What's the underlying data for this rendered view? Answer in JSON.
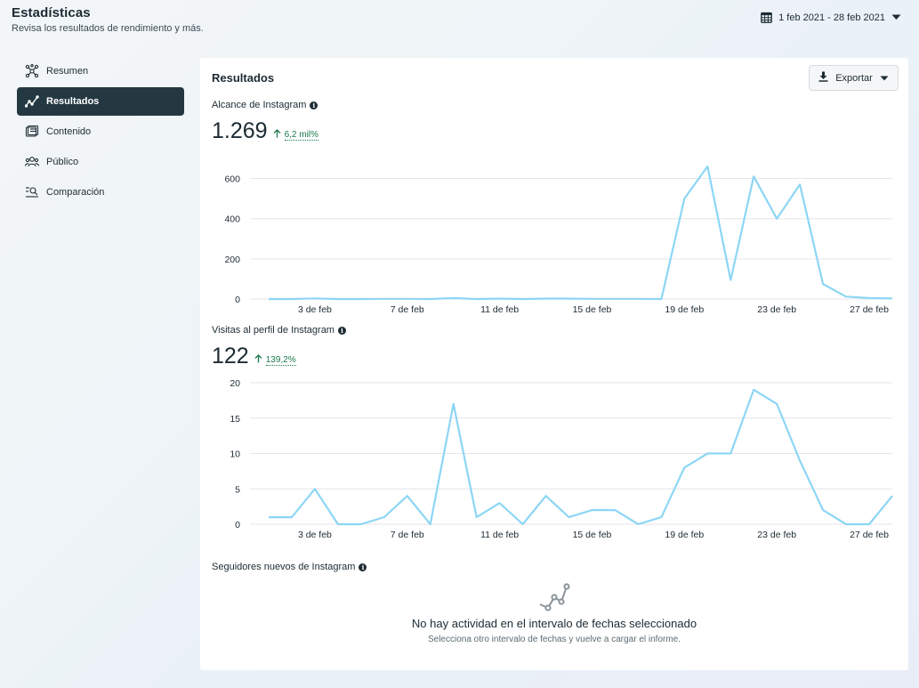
{
  "header": {
    "title": "Estadísticas",
    "subtitle": "Revisa los resultados de rendimiento y más.",
    "date_range": "1 feb 2021 - 28 feb 2021"
  },
  "sidebar": {
    "items": [
      {
        "label": "Resumen",
        "icon": "network-icon",
        "active": false
      },
      {
        "label": "Resultados",
        "icon": "trend-line-icon",
        "active": true
      },
      {
        "label": "Contenido",
        "icon": "content-icon",
        "active": false
      },
      {
        "label": "Público",
        "icon": "people-icon",
        "active": false
      },
      {
        "label": "Comparación",
        "icon": "compare-search-icon",
        "active": false
      }
    ]
  },
  "panel": {
    "title": "Resultados",
    "export_label": "Exportar"
  },
  "metrics": {
    "reach": {
      "label": "Alcance de Instagram",
      "value": "1.269",
      "change": "6,2 mil%",
      "change_direction": "up"
    },
    "profile_visits": {
      "label": "Visitas al perfil de Instagram",
      "value": "122",
      "change": "139,2%",
      "change_direction": "up"
    },
    "new_followers": {
      "label": "Seguidores nuevos de Instagram",
      "empty_title": "No hay actividad en el intervalo de fechas seleccionado",
      "empty_subtitle": "Selecciona otro intervalo de fechas y vuelve a cargar el informe."
    }
  },
  "chart_data": [
    {
      "type": "line",
      "title": "Alcance de Instagram",
      "x": [
        "1 feb",
        "2 feb",
        "3 feb",
        "4 feb",
        "5 feb",
        "6 feb",
        "7 feb",
        "8 feb",
        "9 feb",
        "10 feb",
        "11 feb",
        "12 feb",
        "13 feb",
        "14 feb",
        "15 feb",
        "16 feb",
        "17 feb",
        "18 feb",
        "19 feb",
        "20 feb",
        "21 feb",
        "22 feb",
        "23 feb",
        "24 feb",
        "25 feb",
        "26 feb",
        "27 feb",
        "28 feb"
      ],
      "x_tick_labels": [
        "3 de feb",
        "7 de feb",
        "11 de feb",
        "15 de feb",
        "19 de feb",
        "23 de feb",
        "27 de feb"
      ],
      "x_tick_indices": [
        2,
        6,
        10,
        14,
        18,
        22,
        26
      ],
      "values": [
        0,
        0,
        3,
        0,
        0,
        1,
        1,
        0,
        5,
        0,
        2,
        0,
        2,
        2,
        1,
        1,
        1,
        0,
        500,
        660,
        95,
        610,
        400,
        570,
        75,
        12,
        5,
        3
      ],
      "yticks": [
        0,
        200,
        400,
        600
      ],
      "ylim": [
        0,
        660
      ],
      "color": "#8dd6f5"
    },
    {
      "type": "line",
      "title": "Visitas al perfil de Instagram",
      "x": [
        "1 feb",
        "2 feb",
        "3 feb",
        "4 feb",
        "5 feb",
        "6 feb",
        "7 feb",
        "8 feb",
        "9 feb",
        "10 feb",
        "11 feb",
        "12 feb",
        "13 feb",
        "14 feb",
        "15 feb",
        "16 feb",
        "17 feb",
        "18 feb",
        "19 feb",
        "20 feb",
        "21 feb",
        "22 feb",
        "23 feb",
        "24 feb",
        "25 feb",
        "26 feb",
        "27 feb",
        "28 feb"
      ],
      "x_tick_labels": [
        "3 de feb",
        "7 de feb",
        "11 de feb",
        "15 de feb",
        "19 de feb",
        "23 de feb",
        "27 de feb"
      ],
      "x_tick_indices": [
        2,
        6,
        10,
        14,
        18,
        22,
        26
      ],
      "values": [
        1,
        1,
        5,
        0,
        0,
        1,
        4,
        0,
        17,
        1,
        3,
        0,
        4,
        1,
        2,
        2,
        0,
        1,
        8,
        10,
        10,
        19,
        17,
        9,
        2,
        0,
        0,
        4
      ],
      "yticks": [
        0,
        5,
        10,
        15,
        20
      ],
      "ylim": [
        0,
        20
      ],
      "color": "#8dd6f5"
    }
  ]
}
